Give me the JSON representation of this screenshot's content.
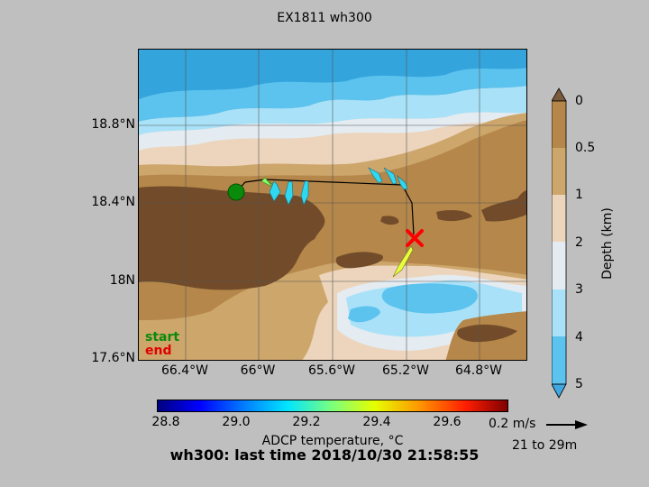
{
  "title": "EX1811 wh300",
  "map": {
    "lat_labels": [
      "18.8°N",
      "18.4°N",
      "18N",
      "17.6°N"
    ],
    "lon_labels": [
      "66.4°W",
      "66°W",
      "65.6°W",
      "65.2°W",
      "64.8°W"
    ],
    "start_label": "start",
    "end_label": "end",
    "track_color": "#000000",
    "start_marker_color": "#0a8a0a",
    "end_marker_color": "#ff0000"
  },
  "depth_colorbar": {
    "title": "Depth (km)",
    "ticks": [
      "0",
      "0.5",
      "1",
      "2",
      "3",
      "4",
      "5"
    ],
    "colors": [
      "#b5874a",
      "#cda66c",
      "#ecd5bc",
      "#e4ebf1",
      "#a9e2f8",
      "#5bc3ee"
    ]
  },
  "temp_colorbar": {
    "title": "ADCP temperature, °C",
    "ticks": [
      "28.8",
      "29.0",
      "29.2",
      "29.4",
      "29.6"
    ]
  },
  "scale": {
    "label": "0.2 m/s",
    "depth_range": "21 to 29m"
  },
  "footer": {
    "last_time": "wh300: last time 2018/10/30 21:58:55"
  }
}
